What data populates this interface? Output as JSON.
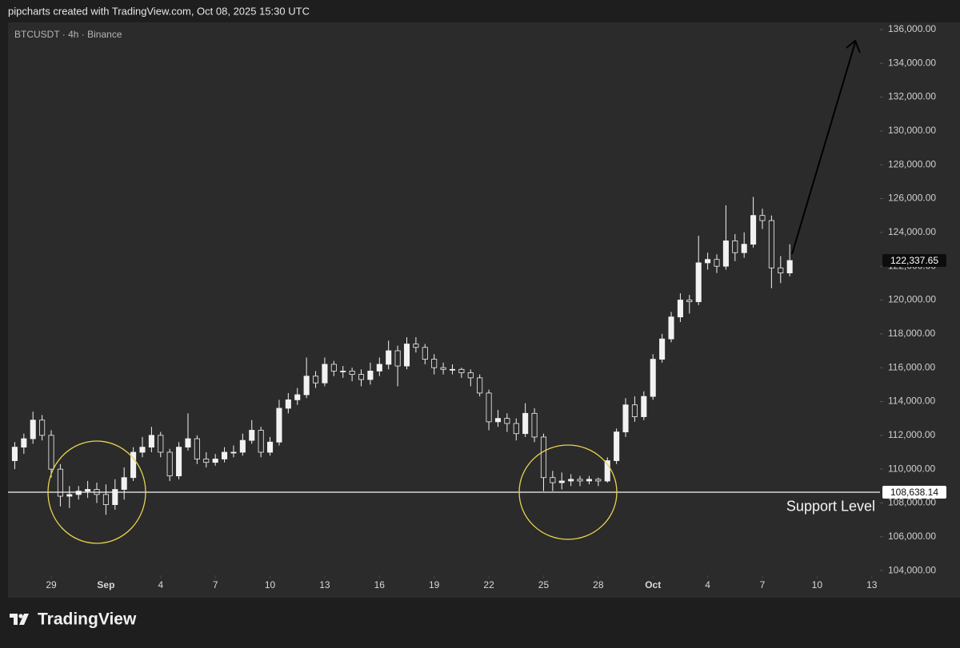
{
  "chart_data": {
    "type": "candlestick",
    "credit": "pipcharts created with TradingView.com, Oct 08, 2025 15:30 UTC",
    "title": "BTCUSDT · 4h · Binance",
    "brand": "TradingView",
    "up_color": "#f2f2f2",
    "down_color": "#2b2b2b",
    "grid": false,
    "xlim": [
      -0.74,
      94.9
    ],
    "xticks": [
      {
        "value": 4,
        "label": "29"
      },
      {
        "value": 10,
        "label": "Sep"
      },
      {
        "value": 16,
        "label": "4"
      },
      {
        "value": 22,
        "label": "7"
      },
      {
        "value": 28,
        "label": "10"
      },
      {
        "value": 34,
        "label": "13"
      },
      {
        "value": 40,
        "label": "16"
      },
      {
        "value": 46,
        "label": "19"
      },
      {
        "value": 52,
        "label": "22"
      },
      {
        "value": 58,
        "label": "25"
      },
      {
        "value": 64,
        "label": "28"
      },
      {
        "value": 70,
        "label": "Oct"
      },
      {
        "value": 76,
        "label": "4"
      },
      {
        "value": 82,
        "label": "7"
      },
      {
        "value": 88,
        "label": "10"
      },
      {
        "value": 94,
        "label": "13"
      }
    ],
    "ylim": [
      102400,
      136420
    ],
    "yticks": [
      {
        "value": 104000,
        "label": "104,000.00"
      },
      {
        "value": 106000,
        "label": "106,000.00"
      },
      {
        "value": 108000,
        "label": "108,000.00"
      },
      {
        "value": 110000,
        "label": "110,000.00"
      },
      {
        "value": 112000,
        "label": "112,000.00"
      },
      {
        "value": 114000,
        "label": "114,000.00"
      },
      {
        "value": 116000,
        "label": "116,000.00"
      },
      {
        "value": 118000,
        "label": "118,000.00"
      },
      {
        "value": 120000,
        "label": "120,000.00"
      },
      {
        "value": 122000,
        "label": "122,000.00"
      },
      {
        "value": 124000,
        "label": "124,000.00"
      },
      {
        "value": 126000,
        "label": "126,000.00"
      },
      {
        "value": 128000,
        "label": "128,000.00"
      },
      {
        "value": 130000,
        "label": "130,000.00"
      },
      {
        "value": 132000,
        "label": "132,000.00"
      },
      {
        "value": 134000,
        "label": "134,000.00"
      },
      {
        "value": 136000,
        "label": "136,000.00"
      }
    ],
    "support": {
      "value": 108638.14,
      "label": "108,638.14",
      "name": "Support Level"
    },
    "last_price": {
      "value": 122337.65,
      "label": "122,337.65"
    },
    "ohlc": [
      [
        110500,
        111600,
        110000,
        111300
      ],
      [
        111300,
        112100,
        110900,
        111800
      ],
      [
        111800,
        113400,
        111500,
        112900
      ],
      [
        112900,
        113200,
        111700,
        112000
      ],
      [
        112000,
        112300,
        109500,
        110000
      ],
      [
        110000,
        110300,
        107800,
        108400
      ],
      [
        108400,
        109000,
        107700,
        108500
      ],
      [
        108500,
        109000,
        108200,
        108700
      ],
      [
        108700,
        109300,
        108300,
        108800
      ],
      [
        108800,
        109200,
        108000,
        108500
      ],
      [
        108500,
        109100,
        107300,
        107900
      ],
      [
        107900,
        109400,
        107600,
        108800
      ],
      [
        108800,
        110100,
        108200,
        109500
      ],
      [
        109500,
        111300,
        109300,
        111000
      ],
      [
        111000,
        111900,
        110700,
        111300
      ],
      [
        111300,
        112500,
        111000,
        112000
      ],
      [
        112000,
        112200,
        110700,
        111000
      ],
      [
        111000,
        111200,
        109300,
        109600
      ],
      [
        109600,
        111600,
        109400,
        111300
      ],
      [
        111300,
        113300,
        111100,
        111800
      ],
      [
        111800,
        112000,
        110300,
        110600
      ],
      [
        110600,
        111000,
        110100,
        110400
      ],
      [
        110400,
        110900,
        110200,
        110600
      ],
      [
        110600,
        111300,
        110400,
        111000
      ],
      [
        111000,
        111400,
        110700,
        111000
      ],
      [
        111000,
        112100,
        110800,
        111700
      ],
      [
        111700,
        112900,
        111500,
        112300
      ],
      [
        112300,
        112500,
        110700,
        111000
      ],
      [
        111000,
        111900,
        110800,
        111600
      ],
      [
        111600,
        114100,
        111400,
        113600
      ],
      [
        113600,
        114500,
        113300,
        114100
      ],
      [
        114100,
        114800,
        113800,
        114400
      ],
      [
        114400,
        116600,
        114200,
        115500
      ],
      [
        115500,
        115800,
        114800,
        115100
      ],
      [
        115100,
        116600,
        114900,
        116200
      ],
      [
        116200,
        116400,
        115500,
        115800
      ],
      [
        115800,
        116100,
        115400,
        115800
      ],
      [
        115800,
        116000,
        115200,
        115600
      ],
      [
        115600,
        115900,
        114900,
        115300
      ],
      [
        115300,
        116300,
        115000,
        115800
      ],
      [
        115800,
        116600,
        115500,
        116200
      ],
      [
        116200,
        117600,
        115900,
        117000
      ],
      [
        117000,
        117300,
        114900,
        116100
      ],
      [
        116100,
        117800,
        115900,
        117400
      ],
      [
        117400,
        117800,
        116900,
        117200
      ],
      [
        117200,
        117400,
        116200,
        116500
      ],
      [
        116500,
        116800,
        115600,
        116000
      ],
      [
        116000,
        116300,
        115600,
        115900
      ],
      [
        115900,
        116200,
        115600,
        115900
      ],
      [
        115900,
        116000,
        115400,
        115700
      ],
      [
        115700,
        115900,
        114900,
        115400
      ],
      [
        115400,
        115600,
        114300,
        114500
      ],
      [
        114500,
        114700,
        112300,
        112800
      ],
      [
        112800,
        113500,
        112500,
        113000
      ],
      [
        113000,
        113300,
        112200,
        112700
      ],
      [
        112700,
        113000,
        111700,
        112100
      ],
      [
        112100,
        113900,
        111900,
        113300
      ],
      [
        113300,
        113600,
        111600,
        111900
      ],
      [
        111900,
        112100,
        108700,
        109500
      ],
      [
        109500,
        109900,
        108700,
        109200
      ],
      [
        109200,
        109800,
        108800,
        109300
      ],
      [
        109300,
        109700,
        109000,
        109400
      ],
      [
        109400,
        109600,
        109000,
        109300
      ],
      [
        109300,
        109600,
        109100,
        109400
      ],
      [
        109400,
        109500,
        109000,
        109300
      ],
      [
        109300,
        110700,
        109200,
        110500
      ],
      [
        110500,
        112400,
        110300,
        112200
      ],
      [
        112200,
        114200,
        111900,
        113800
      ],
      [
        113800,
        114300,
        112800,
        113100
      ],
      [
        113100,
        114600,
        112900,
        114300
      ],
      [
        114300,
        116800,
        114100,
        116500
      ],
      [
        116500,
        118000,
        116300,
        117700
      ],
      [
        117700,
        119300,
        117500,
        119000
      ],
      [
        119000,
        120400,
        118700,
        120000
      ],
      [
        120000,
        120300,
        119200,
        119900
      ],
      [
        119900,
        123800,
        119700,
        122200
      ],
      [
        122200,
        122800,
        121800,
        122400
      ],
      [
        122400,
        122700,
        121600,
        122000
      ],
      [
        122000,
        125600,
        121800,
        123500
      ],
      [
        123500,
        123900,
        122300,
        122800
      ],
      [
        122800,
        124000,
        122500,
        123300
      ],
      [
        123300,
        126100,
        123100,
        125000
      ],
      [
        125000,
        125400,
        124200,
        124700
      ],
      [
        124700,
        125000,
        120700,
        121900
      ],
      [
        121900,
        122600,
        121000,
        121600
      ],
      [
        121600,
        123300,
        121400,
        122337.65
      ]
    ]
  }
}
